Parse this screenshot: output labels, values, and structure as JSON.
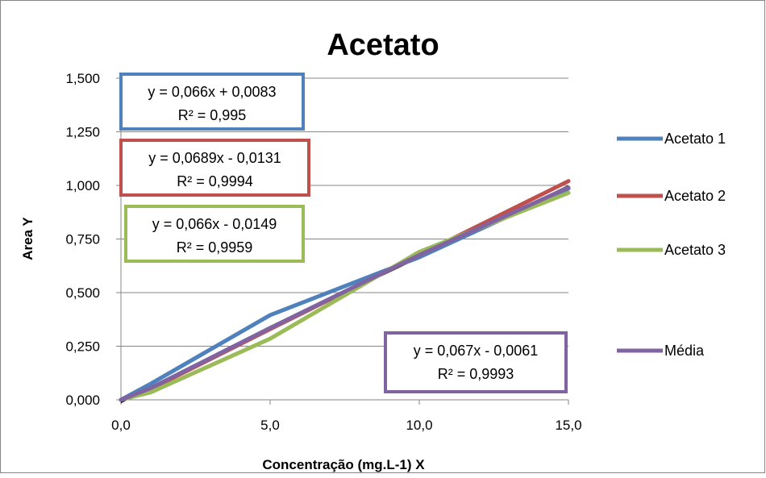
{
  "chart_data": {
    "type": "line",
    "title": "Acetato",
    "xlabel": "Concentração (mg.L-1) X",
    "ylabel": "Area Y",
    "xlim": [
      0,
      15
    ],
    "ylim": [
      0,
      1.5
    ],
    "x_ticks": [
      0,
      5,
      10,
      15
    ],
    "x_tick_labels": [
      "0,0",
      "5,0",
      "10,0",
      "15,0"
    ],
    "y_ticks": [
      0,
      0.25,
      0.5,
      0.75,
      1.0,
      1.25,
      1.5
    ],
    "y_tick_labels": [
      "0,000",
      "0,250",
      "0,500",
      "0,750",
      "1,000",
      "1,250",
      "1,500"
    ],
    "grid": "horizontal",
    "legend_position": "right",
    "series": [
      {
        "name": "Acetato 1",
        "color": "#4f81bd",
        "x": [
          0,
          1,
          5,
          10,
          15
        ],
        "y": [
          0.0,
          0.075,
          0.395,
          0.665,
          0.985
        ]
      },
      {
        "name": "Acetato 2",
        "color": "#c0504d",
        "x": [
          0,
          1,
          5,
          10,
          15
        ],
        "y": [
          0.0,
          0.05,
          0.33,
          0.675,
          1.02
        ]
      },
      {
        "name": "Acetato 3",
        "color": "#9bbb59",
        "x": [
          0,
          1,
          5,
          10,
          15
        ],
        "y": [
          0.0,
          0.035,
          0.285,
          0.69,
          0.965
        ]
      },
      {
        "name": "Média",
        "color": "#8064a2",
        "x": [
          0,
          1,
          5,
          10,
          15
        ],
        "y": [
          0.0,
          0.055,
          0.335,
          0.675,
          0.99
        ]
      }
    ],
    "trendlines": [
      {
        "color": "#000000",
        "slope": 0.067,
        "intercept": -0.0061
      },
      {
        "color": "#000000",
        "slope": 0.0689,
        "intercept": -0.0131
      }
    ],
    "annotations": [
      {
        "equation": "y = 0,066x + 0,0083",
        "r2": "R² = 0,995",
        "color": "#4f81bd"
      },
      {
        "equation": "y = 0,0689x - 0,0131",
        "r2": "R² = 0,9994",
        "color": "#c0504d"
      },
      {
        "equation": "y = 0,066x - 0,0149",
        "r2": "R² = 0,9959",
        "color": "#9bbb59"
      },
      {
        "equation": "y = 0,067x - 0,0061",
        "r2": "R² = 0,9993",
        "color": "#8064a2"
      }
    ]
  }
}
